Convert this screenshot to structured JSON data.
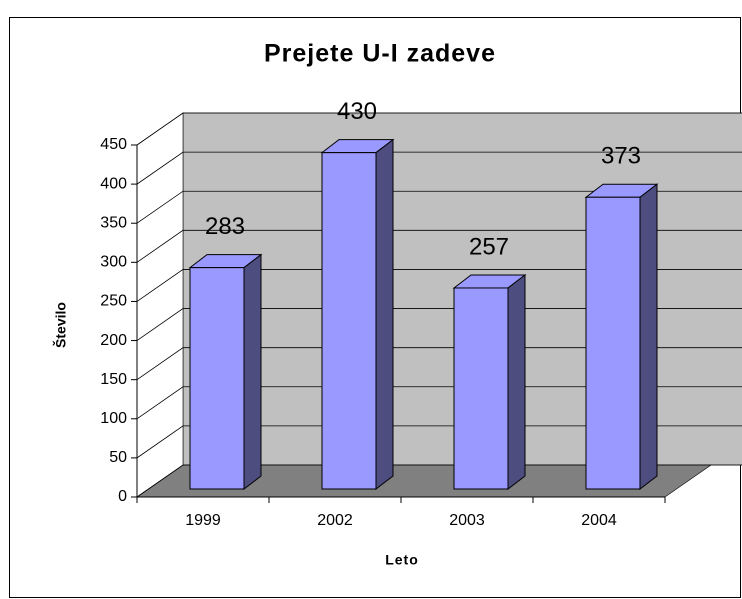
{
  "chart_data": {
    "type": "bar3d",
    "title": "Prejete U-I zadeve",
    "categories": [
      "1999",
      "2002",
      "2003",
      "2004"
    ],
    "values": [
      283,
      430,
      257,
      373
    ],
    "color": "#9999ff",
    "ylim": [
      0,
      450
    ],
    "yticks": [
      0,
      50,
      100,
      150,
      200,
      250,
      300,
      350,
      400,
      450
    ],
    "grid": true,
    "x_label": "Leto",
    "y_label": "Število"
  }
}
